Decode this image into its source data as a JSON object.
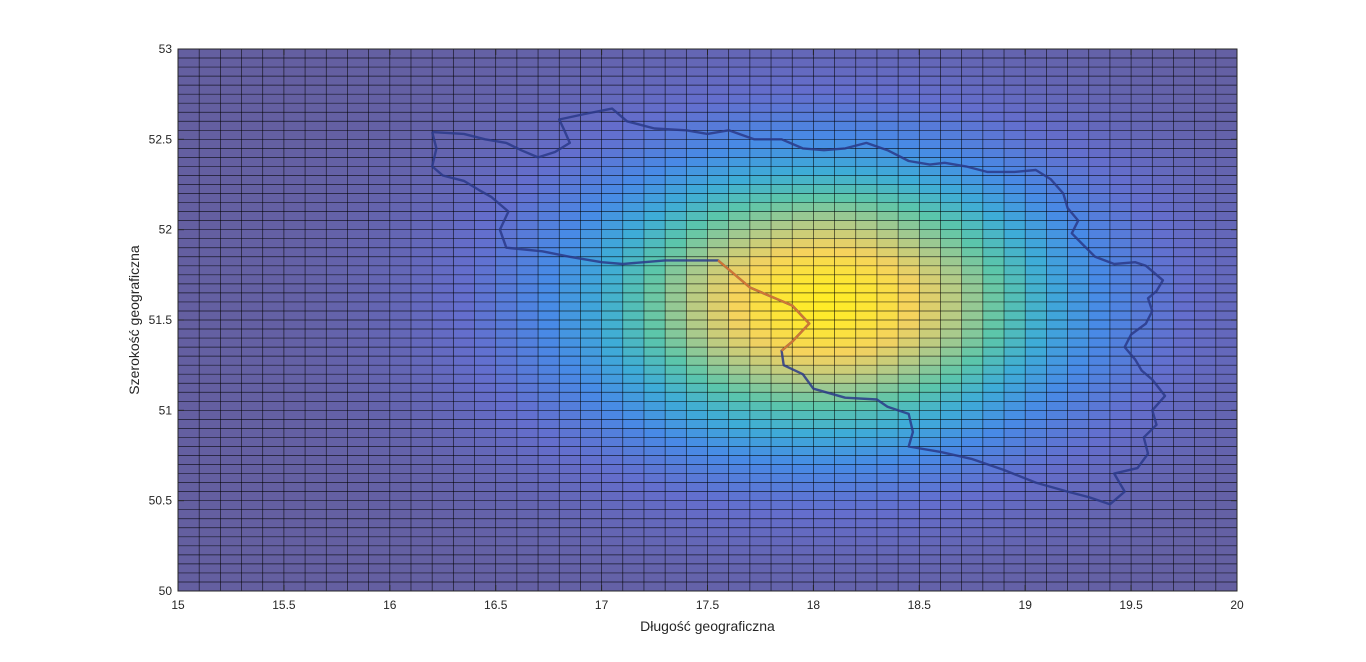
{
  "chart_data": {
    "type": "heatmap",
    "title": "",
    "xlabel": "Długość geograficzna",
    "ylabel": "Szerokość geograficzna",
    "xlim": [
      15,
      20
    ],
    "ylim": [
      50,
      53
    ],
    "xticks": [
      "15",
      "15.5",
      "16",
      "16.5",
      "17",
      "17.5",
      "18",
      "18.5",
      "19",
      "19.5",
      "20"
    ],
    "yticks": [
      "50",
      "50.5",
      "51",
      "51.5",
      "52",
      "52.5",
      "53"
    ],
    "grid": true,
    "grid_step": [
      0.1,
      0.05
    ],
    "colormap": "parula",
    "surface_peak": {
      "lon": 18.05,
      "lat": 51.6
    },
    "surface_spread": {
      "lon": 1.3,
      "lat": 0.9
    },
    "boundary": [
      [
        16.2,
        52.54
      ],
      [
        16.35,
        52.53
      ],
      [
        16.45,
        52.5
      ],
      [
        16.55,
        52.48
      ],
      [
        16.62,
        52.44
      ],
      [
        16.7,
        52.4
      ],
      [
        16.78,
        52.43
      ],
      [
        16.85,
        52.48
      ],
      [
        16.82,
        52.56
      ],
      [
        16.8,
        52.61
      ],
      [
        16.92,
        52.64
      ],
      [
        17.05,
        52.67
      ],
      [
        17.12,
        52.6
      ],
      [
        17.25,
        52.56
      ],
      [
        17.4,
        52.55
      ],
      [
        17.5,
        52.53
      ],
      [
        17.6,
        52.55
      ],
      [
        17.72,
        52.5
      ],
      [
        17.85,
        52.5
      ],
      [
        17.95,
        52.45
      ],
      [
        18.05,
        52.44
      ],
      [
        18.15,
        52.45
      ],
      [
        18.25,
        52.48
      ],
      [
        18.35,
        52.44
      ],
      [
        18.45,
        52.38
      ],
      [
        18.55,
        52.36
      ],
      [
        18.62,
        52.37
      ],
      [
        18.72,
        52.35
      ],
      [
        18.82,
        52.32
      ],
      [
        18.95,
        52.32
      ],
      [
        19.05,
        52.33
      ],
      [
        19.12,
        52.28
      ],
      [
        19.18,
        52.2
      ],
      [
        19.2,
        52.12
      ],
      [
        19.25,
        52.05
      ],
      [
        19.22,
        51.98
      ],
      [
        19.27,
        51.92
      ],
      [
        19.33,
        51.85
      ],
      [
        19.42,
        51.81
      ],
      [
        19.52,
        51.82
      ],
      [
        19.57,
        51.8
      ],
      [
        19.6,
        51.77
      ],
      [
        19.65,
        51.72
      ],
      [
        19.62,
        51.66
      ],
      [
        19.58,
        51.62
      ],
      [
        19.6,
        51.55
      ],
      [
        19.57,
        51.48
      ],
      [
        19.5,
        51.42
      ],
      [
        19.47,
        51.35
      ],
      [
        19.52,
        51.28
      ],
      [
        19.55,
        51.22
      ],
      [
        19.6,
        51.17
      ],
      [
        19.66,
        51.08
      ],
      [
        19.6,
        51.0
      ],
      [
        19.62,
        50.92
      ],
      [
        19.56,
        50.85
      ],
      [
        19.58,
        50.76
      ],
      [
        19.53,
        50.68
      ],
      [
        19.42,
        50.65
      ],
      [
        19.47,
        50.55
      ],
      [
        19.4,
        50.48
      ],
      [
        19.3,
        50.52
      ],
      [
        19.2,
        50.55
      ],
      [
        19.05,
        50.6
      ],
      [
        18.9,
        50.67
      ],
      [
        18.75,
        50.73
      ],
      [
        18.6,
        50.77
      ],
      [
        18.45,
        50.8
      ],
      [
        18.47,
        50.88
      ],
      [
        18.45,
        50.98
      ],
      [
        18.35,
        51.02
      ],
      [
        18.3,
        51.06
      ],
      [
        18.15,
        51.07
      ],
      [
        18.0,
        51.12
      ],
      [
        17.95,
        51.2
      ],
      [
        17.86,
        51.25
      ],
      [
        17.85,
        51.33
      ],
      [
        17.9,
        51.38
      ],
      [
        17.98,
        51.48
      ],
      [
        17.9,
        51.58
      ],
      [
        17.82,
        51.62
      ],
      [
        17.7,
        51.68
      ],
      [
        17.62,
        51.76
      ],
      [
        17.55,
        51.83
      ],
      [
        17.3,
        51.83
      ],
      [
        17.1,
        51.81
      ],
      [
        17.0,
        51.82
      ],
      [
        16.85,
        51.85
      ],
      [
        16.72,
        51.88
      ],
      [
        16.55,
        51.9
      ],
      [
        16.52,
        52.0
      ],
      [
        16.56,
        52.1
      ],
      [
        16.48,
        52.18
      ],
      [
        16.42,
        52.22
      ],
      [
        16.35,
        52.27
      ],
      [
        16.25,
        52.3
      ],
      [
        16.2,
        52.35
      ],
      [
        16.22,
        52.45
      ],
      [
        16.2,
        52.54
      ]
    ]
  }
}
